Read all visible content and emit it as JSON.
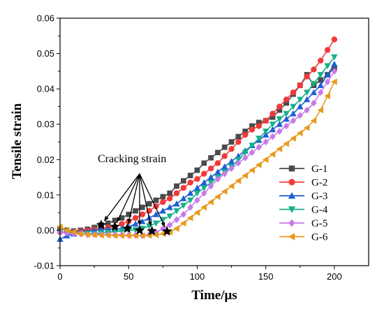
{
  "chart_data": {
    "type": "line",
    "title": "",
    "xlabel": "Time/μs",
    "ylabel": "Tensile strain",
    "xlim": [
      0,
      225
    ],
    "ylim": [
      -0.01,
      0.06
    ],
    "xticks": [
      0,
      50,
      100,
      150,
      200
    ],
    "yticks": [
      -0.01,
      0.0,
      0.01,
      0.02,
      0.03,
      0.04,
      0.05,
      0.06
    ],
    "xtick_labels": [
      "0",
      "50",
      "100",
      "150",
      "200"
    ],
    "ytick_labels": [
      "-0.01",
      "0.00",
      "0.01",
      "0.02",
      "0.03",
      "0.04",
      "0.05",
      "0.06"
    ],
    "grid": false,
    "legend_position": "right",
    "annotation": {
      "text": "Cracking strain",
      "anchor": [
        58,
        0.016
      ],
      "cracking_points": [
        {
          "series": "G-1",
          "x": 30,
          "y": 0.0015
        },
        {
          "series": "G-2",
          "x": 40,
          "y": 0.001
        },
        {
          "series": "G-3",
          "x": 49,
          "y": 0.0005
        },
        {
          "series": "G-4",
          "x": 58,
          "y": 0.0
        },
        {
          "series": "G-5",
          "x": 67,
          "y": -0.0002
        },
        {
          "series": "G-6",
          "x": 78,
          "y": -0.0003
        }
      ]
    },
    "series": [
      {
        "name": "G-1",
        "color": "#4a4a4a",
        "marker": "square",
        "x": [
          0,
          5,
          10,
          15,
          20,
          25,
          30,
          35,
          40,
          45,
          50,
          55,
          60,
          65,
          70,
          75,
          80,
          85,
          90,
          95,
          100,
          105,
          110,
          115,
          120,
          125,
          130,
          135,
          140,
          145,
          150,
          155,
          160,
          165,
          170,
          175,
          180,
          185,
          190,
          195,
          200
        ],
        "y": [
          0.0005,
          0.0,
          -0.0002,
          0.0,
          0.0003,
          0.0008,
          0.0015,
          0.002,
          0.0028,
          0.0035,
          0.0045,
          0.0055,
          0.0065,
          0.0075,
          0.0085,
          0.0095,
          0.0105,
          0.0125,
          0.014,
          0.0155,
          0.017,
          0.019,
          0.0205,
          0.022,
          0.0235,
          0.025,
          0.0265,
          0.028,
          0.0295,
          0.0305,
          0.031,
          0.032,
          0.034,
          0.036,
          0.0385,
          0.041,
          0.044,
          0.041,
          0.0425,
          0.044,
          0.046
        ]
      },
      {
        "name": "G-2",
        "color": "#f03a3a",
        "marker": "circle",
        "x": [
          0,
          5,
          10,
          15,
          20,
          25,
          30,
          35,
          40,
          45,
          50,
          55,
          60,
          65,
          70,
          75,
          80,
          85,
          90,
          95,
          100,
          105,
          110,
          115,
          120,
          125,
          130,
          135,
          140,
          145,
          150,
          155,
          160,
          165,
          170,
          175,
          180,
          185,
          190,
          195,
          200
        ],
        "y": [
          -0.0005,
          -0.0005,
          -0.0005,
          -0.0003,
          0.0,
          0.0003,
          0.0006,
          0.0008,
          0.001,
          0.0018,
          0.0025,
          0.0035,
          0.0045,
          0.0055,
          0.0068,
          0.008,
          0.009,
          0.0105,
          0.012,
          0.0135,
          0.0145,
          0.016,
          0.0175,
          0.019,
          0.021,
          0.023,
          0.025,
          0.027,
          0.0285,
          0.0295,
          0.031,
          0.033,
          0.035,
          0.037,
          0.039,
          0.041,
          0.0435,
          0.0455,
          0.048,
          0.051,
          0.054
        ]
      },
      {
        "name": "G-3",
        "color": "#1e5fd4",
        "marker": "triangle-up",
        "x": [
          0,
          5,
          10,
          15,
          20,
          25,
          30,
          35,
          40,
          45,
          50,
          55,
          60,
          65,
          70,
          75,
          80,
          85,
          90,
          95,
          100,
          105,
          110,
          115,
          120,
          125,
          130,
          135,
          140,
          145,
          150,
          155,
          160,
          165,
          170,
          175,
          180,
          185,
          190,
          195,
          200
        ],
        "y": [
          -0.0025,
          -0.0015,
          -0.001,
          -0.0005,
          -0.0003,
          0.0,
          0.0002,
          0.0003,
          0.0004,
          0.0005,
          0.001,
          0.0018,
          0.0025,
          0.0035,
          0.0045,
          0.0055,
          0.0065,
          0.0075,
          0.009,
          0.0105,
          0.012,
          0.0135,
          0.015,
          0.0165,
          0.018,
          0.0195,
          0.021,
          0.0225,
          0.024,
          0.0255,
          0.027,
          0.0285,
          0.03,
          0.0315,
          0.033,
          0.035,
          0.037,
          0.039,
          0.041,
          0.044,
          0.047
        ]
      },
      {
        "name": "G-4",
        "color": "#16b08a",
        "marker": "triangle-down",
        "x": [
          0,
          5,
          10,
          15,
          20,
          25,
          30,
          35,
          40,
          45,
          50,
          55,
          60,
          65,
          70,
          75,
          80,
          85,
          90,
          95,
          100,
          105,
          110,
          115,
          120,
          125,
          130,
          135,
          140,
          145,
          150,
          155,
          160,
          165,
          170,
          175,
          180,
          185,
          190,
          195,
          200
        ],
        "y": [
          -0.0005,
          -0.0005,
          -0.0008,
          -0.001,
          -0.001,
          -0.001,
          -0.0008,
          -0.0006,
          -0.0004,
          -0.0002,
          0.0,
          0.0001,
          0.0005,
          0.0012,
          0.002,
          0.003,
          0.004,
          0.0055,
          0.007,
          0.0085,
          0.0105,
          0.012,
          0.0135,
          0.015,
          0.0165,
          0.018,
          0.02,
          0.022,
          0.024,
          0.026,
          0.028,
          0.03,
          0.0315,
          0.033,
          0.035,
          0.037,
          0.039,
          0.0415,
          0.044,
          0.0465,
          0.049
        ]
      },
      {
        "name": "G-5",
        "color": "#c77ae8",
        "marker": "diamond",
        "x": [
          0,
          5,
          10,
          15,
          20,
          25,
          30,
          35,
          40,
          45,
          50,
          55,
          60,
          65,
          70,
          75,
          80,
          85,
          90,
          95,
          100,
          105,
          110,
          115,
          120,
          125,
          130,
          135,
          140,
          145,
          150,
          155,
          160,
          165,
          170,
          175,
          180,
          185,
          190,
          195,
          200
        ],
        "y": [
          -0.0005,
          -0.0008,
          -0.001,
          -0.001,
          -0.0012,
          -0.0012,
          -0.0012,
          -0.0012,
          -0.0013,
          -0.0013,
          -0.0014,
          -0.0014,
          -0.0015,
          -0.0012,
          -0.0006,
          0.0005,
          0.0015,
          0.003,
          0.0045,
          0.0065,
          0.0085,
          0.0105,
          0.0125,
          0.0145,
          0.016,
          0.0175,
          0.019,
          0.0205,
          0.022,
          0.0235,
          0.025,
          0.0265,
          0.028,
          0.0295,
          0.031,
          0.0325,
          0.034,
          0.036,
          0.039,
          0.042,
          0.045
        ]
      },
      {
        "name": "G-6",
        "color": "#e89a1c",
        "marker": "triangle-left",
        "x": [
          0,
          5,
          10,
          15,
          20,
          25,
          30,
          35,
          40,
          45,
          50,
          55,
          60,
          65,
          70,
          75,
          80,
          85,
          90,
          95,
          100,
          105,
          110,
          115,
          120,
          125,
          130,
          135,
          140,
          145,
          150,
          155,
          160,
          165,
          170,
          175,
          180,
          185,
          190,
          195,
          200
        ],
        "y": [
          0.001,
          0.0,
          -0.0005,
          -0.001,
          -0.0012,
          -0.0013,
          -0.0014,
          -0.0014,
          -0.0015,
          -0.0015,
          -0.0015,
          -0.0015,
          -0.0015,
          -0.0015,
          -0.0013,
          -0.001,
          -0.0005,
          0.0005,
          0.002,
          0.0035,
          0.005,
          0.0065,
          0.008,
          0.0095,
          0.011,
          0.0125,
          0.014,
          0.0155,
          0.017,
          0.0185,
          0.02,
          0.0215,
          0.023,
          0.0245,
          0.026,
          0.0275,
          0.029,
          0.031,
          0.034,
          0.038,
          0.042
        ]
      }
    ]
  }
}
